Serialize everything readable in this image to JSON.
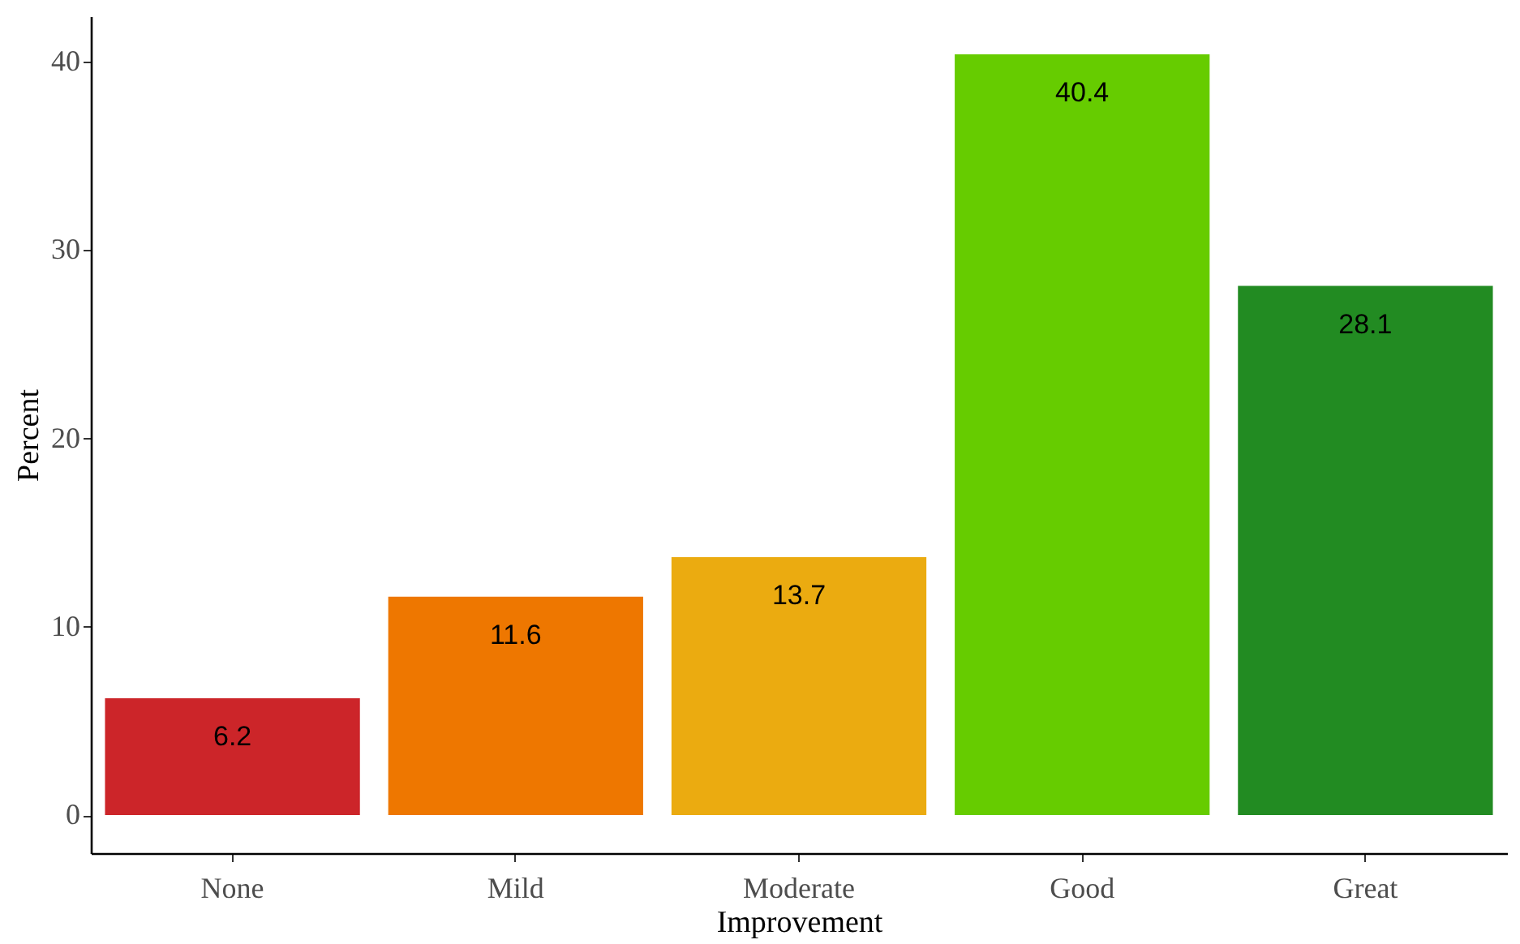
{
  "chart_data": {
    "type": "bar",
    "xlabel": "Improvement",
    "ylabel": "Percent",
    "categories": [
      "None",
      "Mild",
      "Moderate",
      "Good",
      "Great"
    ],
    "values": [
      6.2,
      11.6,
      13.7,
      40.4,
      28.1
    ],
    "colors": [
      "#cc2529",
      "#ee7700",
      "#ebab10",
      "#66cc00",
      "#228b22"
    ],
    "ylim": [
      -2.02,
      42.42
    ],
    "yticks": [
      0,
      10,
      20,
      30,
      40
    ],
    "grid": false,
    "legend": false,
    "data_labels": true
  }
}
